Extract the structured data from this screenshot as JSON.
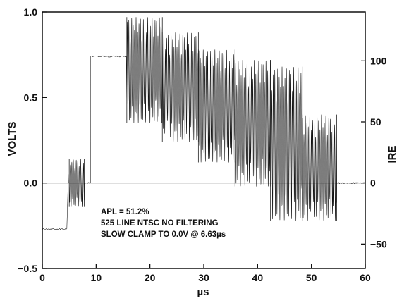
{
  "chart_data": {
    "type": "line",
    "title": "",
    "xlabel": "µs",
    "ylabel": "VOLTS",
    "y2label": "IRE",
    "xlim": [
      0,
      60
    ],
    "ylim": [
      -0.5,
      1.0
    ],
    "x_ticks": [
      0,
      10,
      20,
      30,
      40,
      50,
      60
    ],
    "x_tick_labels": [
      "0",
      "10",
      "20",
      "30",
      "40",
      "50",
      "60"
    ],
    "y_ticks": [
      -0.5,
      0.0,
      0.5,
      1.0
    ],
    "y_tick_labels": [
      "−0.5",
      "0.0",
      "0.5",
      "1.0"
    ],
    "y2_ticks": [
      -50,
      0,
      50,
      100
    ],
    "y2_tick_labels": [
      "−50",
      "0",
      "50",
      "100"
    ],
    "y2_volts_per_ire": 0.007143,
    "grid": false,
    "zero_line": true,
    "annotations": [
      "APL = 51.2%",
      "525 LINE NTSC NO FILTERING",
      "SLOW CLAMP TO 0.0V @ 6.63µs"
    ],
    "series": [
      {
        "segments": [
          {
            "type": "flat",
            "x": [
              0.0,
              4.6
            ],
            "y": -0.27
          },
          {
            "type": "flat",
            "x": [
              4.8,
              5.0
            ],
            "y": 0.0
          },
          {
            "type": "burst",
            "x": [
              5.0,
              7.8
            ],
            "center": 0.0,
            "amplitude": 0.14
          },
          {
            "type": "flat",
            "x": [
              7.8,
              9.0
            ],
            "y": 0.0
          },
          {
            "type": "flat",
            "x": [
              9.0,
              15.7
            ],
            "y": 0.74
          },
          {
            "type": "chroma",
            "x": [
              15.7,
              22.3
            ],
            "center": 0.66,
            "amplitude": 0.31
          },
          {
            "type": "chroma",
            "x": [
              22.3,
              29.0
            ],
            "center": 0.56,
            "amplitude": 0.32
          },
          {
            "type": "chroma",
            "x": [
              29.0,
              35.8
            ],
            "center": 0.45,
            "amplitude": 0.33
          },
          {
            "type": "chroma",
            "x": [
              35.8,
              42.4
            ],
            "center": 0.35,
            "amplitude": 0.37
          },
          {
            "type": "chroma",
            "x": [
              42.4,
              48.3
            ],
            "center": 0.23,
            "amplitude": 0.45
          },
          {
            "type": "chroma",
            "x": [
              48.3,
              54.7
            ],
            "center": 0.09,
            "amplitude": 0.31
          },
          {
            "type": "flat",
            "x": [
              54.7,
              60.0
            ],
            "y": 0.0
          }
        ]
      }
    ]
  }
}
